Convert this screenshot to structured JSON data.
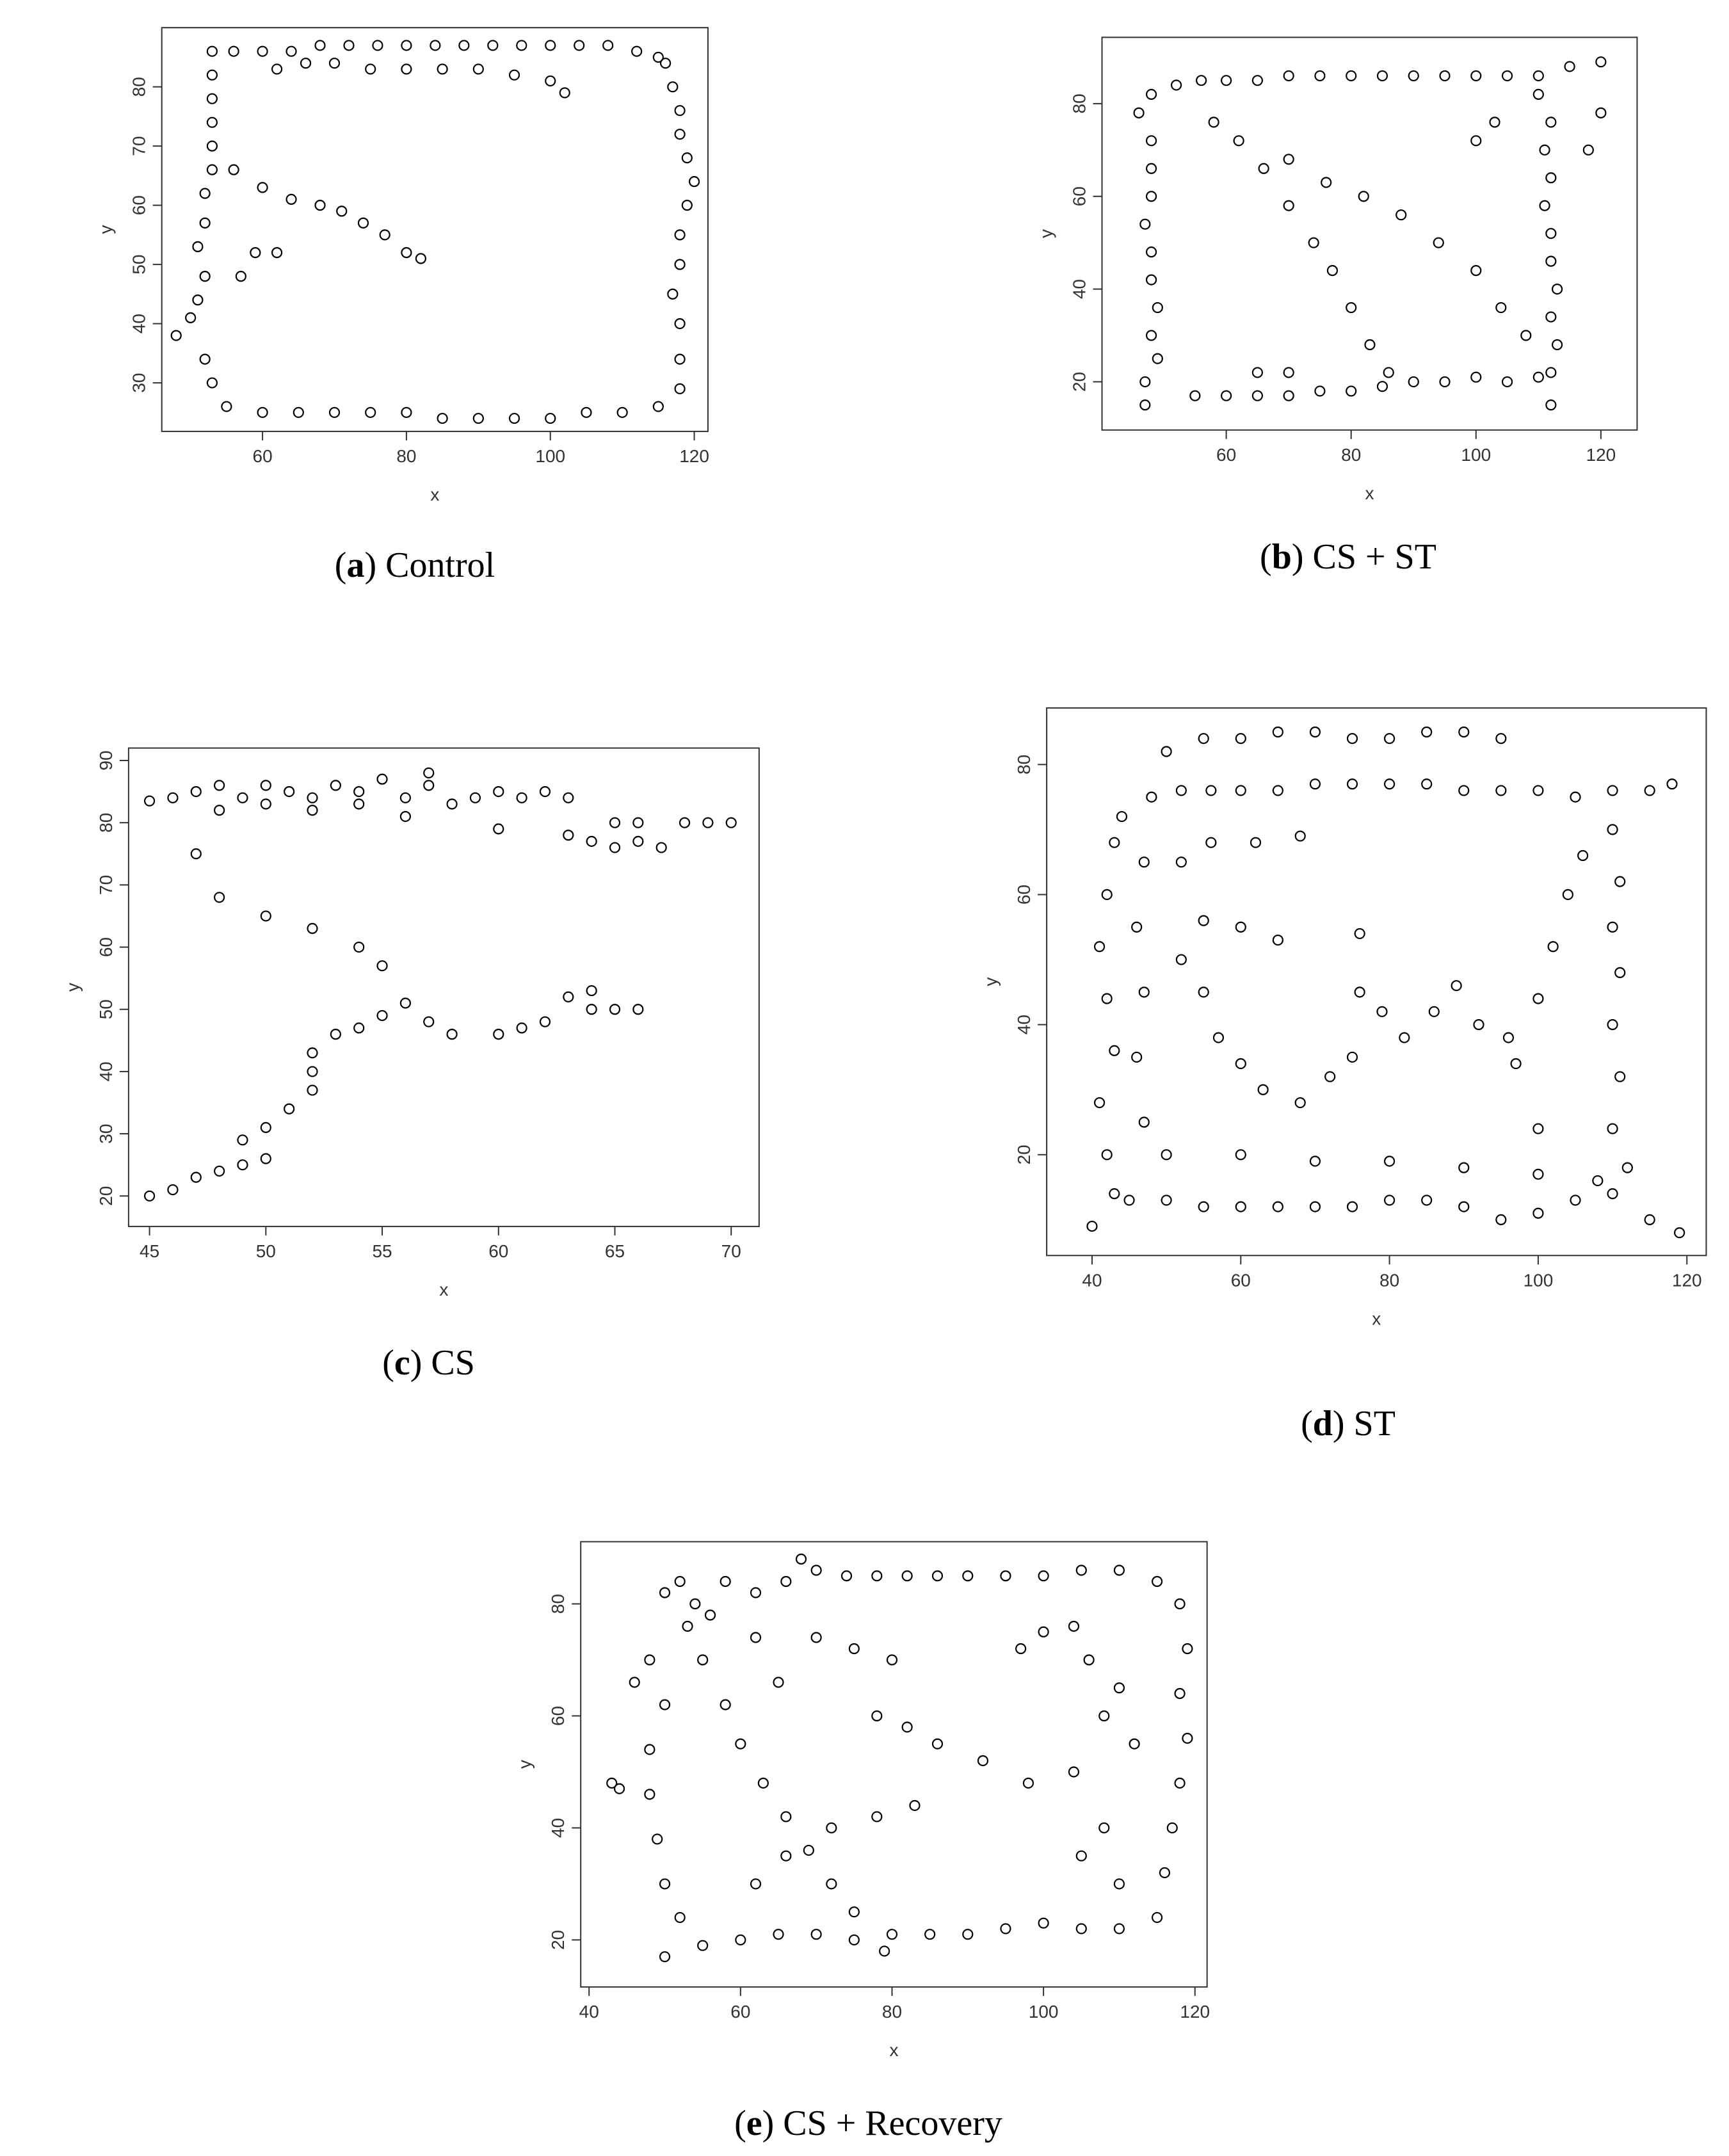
{
  "chart_data": [
    {
      "type": "scatter",
      "panel_label": "a",
      "caption": "Control",
      "x_label": "x",
      "y_label": "y",
      "xlim": [
        46,
        121.9
      ],
      "ylim": [
        21.8,
        90
      ],
      "xticks": [
        60,
        80,
        100,
        120
      ],
      "yticks": [
        30,
        40,
        50,
        60,
        70,
        80
      ],
      "color": "#000000",
      "x": [
        53,
        56,
        60,
        64,
        68,
        72,
        76,
        80,
        84,
        88,
        92,
        96,
        100,
        104,
        108,
        112,
        115,
        62,
        66,
        70,
        75,
        80,
        85,
        90,
        95,
        100,
        102,
        53,
        53,
        53,
        53,
        53,
        52,
        52,
        51,
        52,
        51,
        50,
        48,
        52,
        53,
        55,
        60,
        65,
        70,
        75,
        80,
        85,
        90,
        95,
        100,
        105,
        110,
        115,
        118,
        118,
        118,
        117,
        118,
        118,
        119,
        120,
        119,
        118,
        118,
        117,
        116,
        56,
        60,
        64,
        68,
        71,
        74,
        77,
        80,
        82,
        57,
        59,
        62
      ],
      "y": [
        86,
        86,
        86,
        86,
        87,
        87,
        87,
        87,
        87,
        87,
        87,
        87,
        87,
        87,
        87,
        86,
        85,
        83,
        84,
        84,
        83,
        83,
        83,
        83,
        82,
        81,
        79,
        82,
        78,
        74,
        70,
        66,
        62,
        57,
        53,
        48,
        44,
        41,
        38,
        34,
        30,
        26,
        25,
        25,
        25,
        25,
        25,
        24,
        24,
        24,
        24,
        25,
        25,
        26,
        29,
        34,
        40,
        45,
        50,
        55,
        60,
        64,
        68,
        72,
        76,
        80,
        84,
        66,
        63,
        61,
        60,
        59,
        57,
        55,
        52,
        51,
        48,
        52,
        52
      ]
    },
    {
      "type": "scatter",
      "panel_label": "b",
      "caption": "CS + ST",
      "x_label": "x",
      "y_label": "y",
      "xlim": [
        40.1,
        125.8
      ],
      "ylim": [
        9.6,
        94.3
      ],
      "xticks": [
        60,
        80,
        100,
        120
      ],
      "yticks": [
        20,
        40,
        60,
        80
      ],
      "color": "#000000",
      "x": [
        48,
        52,
        56,
        60,
        65,
        70,
        75,
        80,
        85,
        90,
        95,
        100,
        105,
        110,
        115,
        120,
        46,
        48,
        48,
        48,
        47,
        48,
        48,
        49,
        48,
        49,
        47,
        47,
        55,
        60,
        65,
        70,
        75,
        80,
        85,
        90,
        95,
        100,
        105,
        110,
        112,
        112,
        113,
        112,
        113,
        112,
        112,
        111,
        112,
        111,
        112,
        110,
        118,
        120,
        58,
        62,
        66,
        70,
        74,
        77,
        80,
        83,
        86,
        70,
        76,
        82,
        88,
        94,
        100,
        104,
        108,
        100,
        103,
        65,
        70
      ],
      "y": [
        82,
        84,
        85,
        85,
        85,
        86,
        86,
        86,
        86,
        86,
        86,
        86,
        86,
        86,
        88,
        89,
        78,
        72,
        66,
        60,
        54,
        48,
        42,
        36,
        30,
        25,
        20,
        15,
        17,
        17,
        17,
        17,
        18,
        18,
        19,
        20,
        20,
        21,
        20,
        21,
        15,
        22,
        28,
        34,
        40,
        46,
        52,
        58,
        64,
        70,
        76,
        82,
        70,
        78,
        76,
        72,
        66,
        58,
        50,
        44,
        36,
        28,
        22,
        68,
        63,
        60,
        56,
        50,
        44,
        36,
        30,
        72,
        76,
        22,
        22
      ]
    },
    {
      "type": "scatter",
      "panel_label": "c",
      "caption": "CS",
      "x_label": "x",
      "y_label": "y",
      "xlim": [
        44.1,
        71.2
      ],
      "ylim": [
        15.1,
        92
      ],
      "xticks": [
        45,
        50,
        55,
        60,
        65,
        70
      ],
      "yticks": [
        20,
        30,
        40,
        50,
        60,
        70,
        80,
        90
      ],
      "color": "#000000",
      "x": [
        45,
        46,
        47,
        48,
        49,
        50,
        51,
        52,
        53,
        54,
        55,
        56,
        57,
        48,
        50,
        52,
        54,
        56,
        57,
        58,
        59,
        60,
        61,
        62,
        63,
        60,
        63,
        64,
        65,
        66,
        67,
        68,
        69,
        70,
        65,
        66,
        47,
        48,
        50,
        52,
        54,
        55,
        45,
        46,
        47,
        48,
        49,
        50,
        49,
        50,
        51,
        52,
        52,
        52,
        53,
        54,
        55,
        56,
        57,
        58,
        60,
        61,
        62,
        63,
        64,
        65,
        66,
        64
      ],
      "y": [
        83.5,
        84,
        85,
        86,
        84,
        86,
        85,
        84,
        86,
        85,
        87,
        84,
        86,
        82,
        83,
        82,
        83,
        81,
        88,
        83,
        84,
        85,
        84,
        85,
        84,
        79,
        78,
        77,
        76,
        77,
        76,
        80,
        80,
        80,
        80,
        80,
        75,
        68,
        65,
        63,
        60,
        57,
        20,
        21,
        23,
        24,
        25,
        26,
        29,
        31,
        34,
        37,
        40,
        43,
        46,
        47,
        49,
        51,
        48,
        46,
        46,
        47,
        48,
        52,
        50,
        50,
        50,
        53
      ]
    },
    {
      "type": "scatter",
      "panel_label": "d",
      "caption": "ST",
      "x_label": "x",
      "y_label": "y",
      "xlim": [
        33.9,
        122.6
      ],
      "ylim": [
        4.5,
        88.7
      ],
      "xticks": [
        40,
        60,
        80,
        100,
        120
      ],
      "yticks": [
        20,
        40,
        60,
        80
      ],
      "color": "#000000",
      "x": [
        44,
        48,
        52,
        56,
        60,
        65,
        70,
        75,
        80,
        85,
        90,
        95,
        100,
        105,
        110,
        115,
        118,
        50,
        55,
        60,
        65,
        70,
        75,
        80,
        85,
        90,
        95,
        43,
        42,
        41,
        42,
        43,
        41,
        42,
        43,
        40,
        47,
        46,
        47,
        46,
        47,
        45,
        50,
        55,
        60,
        65,
        70,
        75,
        80,
        85,
        90,
        95,
        100,
        105,
        110,
        115,
        119,
        50,
        60,
        70,
        80,
        90,
        100,
        108,
        110,
        111,
        110,
        111,
        110,
        111,
        110,
        112,
        106,
        104,
        102,
        100,
        96,
        100,
        52,
        55,
        57,
        60,
        63,
        68,
        72,
        75,
        76,
        76,
        79,
        82,
        86,
        89,
        92,
        97,
        52,
        56,
        62,
        68,
        55,
        60,
        65
      ],
      "y": [
        72,
        75,
        76,
        76,
        76,
        76,
        77,
        77,
        77,
        77,
        76,
        76,
        76,
        75,
        76,
        76,
        77,
        82,
        84,
        84,
        85,
        85,
        84,
        84,
        85,
        85,
        84,
        68,
        60,
        52,
        44,
        36,
        28,
        20,
        14,
        9,
        65,
        55,
        45,
        35,
        25,
        13,
        13,
        12,
        12,
        12,
        12,
        12,
        13,
        13,
        12,
        10,
        11,
        13,
        14,
        10,
        8,
        20,
        20,
        19,
        19,
        18,
        17,
        16,
        70,
        62,
        55,
        48,
        40,
        32,
        24,
        18,
        66,
        60,
        52,
        44,
        38,
        24,
        50,
        45,
        38,
        34,
        30,
        28,
        32,
        35,
        45,
        54,
        42,
        38,
        42,
        46,
        40,
        34,
        65,
        68,
        68,
        69,
        56,
        55,
        53
      ]
    },
    {
      "type": "scatter",
      "panel_label": "e",
      "caption": "CS + Recovery",
      "x_label": "x",
      "y_label": "y",
      "xlim": [
        38.9,
        121.6
      ],
      "ylim": [
        11.6,
        91.1
      ],
      "xticks": [
        40,
        60,
        80,
        100,
        120
      ],
      "yticks": [
        20,
        40,
        60,
        80
      ],
      "color": "#000000",
      "x": [
        52,
        50,
        54,
        56,
        53,
        48,
        46,
        50,
        58,
        62,
        66,
        68,
        70,
        74,
        78,
        82,
        86,
        90,
        95,
        100,
        105,
        110,
        115,
        118,
        119,
        118,
        119,
        118,
        117,
        116,
        115,
        110,
        105,
        100,
        95,
        90,
        85,
        80,
        75,
        70,
        65,
        60,
        55,
        50,
        52,
        50,
        49,
        48,
        48,
        43,
        44,
        55,
        58,
        60,
        63,
        66,
        69,
        72,
        75,
        79,
        62,
        66,
        72,
        78,
        83,
        78,
        82,
        86,
        92,
        98,
        104,
        108,
        106,
        104,
        100,
        97,
        110,
        112,
        108,
        105,
        110,
        75,
        80,
        70,
        62,
        65
      ],
      "y": [
        84,
        82,
        80,
        78,
        76,
        70,
        66,
        62,
        84,
        82,
        84,
        88,
        86,
        85,
        85,
        85,
        85,
        85,
        85,
        85,
        86,
        86,
        84,
        80,
        72,
        64,
        56,
        48,
        40,
        32,
        24,
        22,
        22,
        23,
        22,
        21,
        21,
        21,
        20,
        21,
        21,
        20,
        19,
        17,
        24,
        30,
        38,
        46,
        54,
        48,
        47,
        70,
        62,
        55,
        48,
        42,
        36,
        30,
        25,
        18,
        30,
        35,
        40,
        42,
        44,
        60,
        58,
        55,
        52,
        48,
        50,
        60,
        70,
        76,
        75,
        72,
        65,
        55,
        40,
        35,
        30,
        72,
        70,
        74,
        74,
        66
      ]
    }
  ]
}
